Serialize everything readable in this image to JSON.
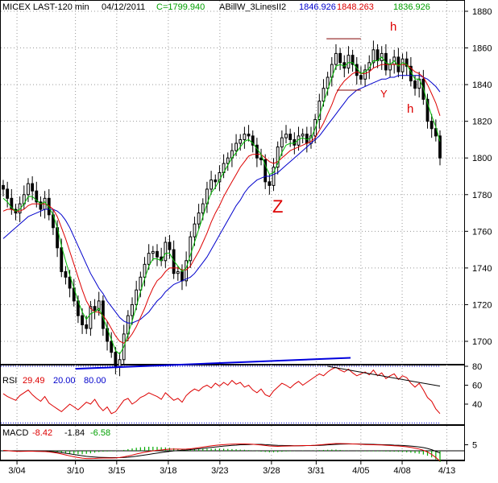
{
  "header": {
    "symbol": "MICEX LAST-120 min",
    "date": "04/12/2011",
    "close": "C=1799.940",
    "indicator": "ABillW_3LinesII2",
    "ma1": "1846.926",
    "ma2": "1848.263",
    "ma3": "1836.926"
  },
  "rsi_header": {
    "label": "RSI",
    "v1": "29.49",
    "v2": "20.00",
    "v3": "80.00"
  },
  "macd_header": {
    "label": "MACD",
    "v1": "-8.42",
    "v2": "-1.84",
    "v3": "-6.58"
  },
  "annotations": {
    "h_top": "h",
    "h_right": "h",
    "y": "Y",
    "z": "Z"
  },
  "colors": {
    "background": "#ffffff",
    "candles": "#000000",
    "ma_green": "#00bb00",
    "ma_red": "#dd0000",
    "ma_blue": "#0000cc",
    "trendline": "#0000dd",
    "pattern": "#800000",
    "rsi": "#dd0000",
    "macd_green": "#00aa00"
  },
  "chart_data": [
    {
      "type": "line",
      "title": "MICEX LAST-120 min",
      "x_tick_labels": [
        "3/04",
        "3/10",
        "3/15",
        "3/18",
        "3/23",
        "3/28",
        "3/31",
        "4/05",
        "4/08",
        "4/13"
      ],
      "y_tick_labels": [
        "1700",
        "1720",
        "1740",
        "1760",
        "1780",
        "1800",
        "1820",
        "1840",
        "1860",
        "1880"
      ],
      "ylim": [
        1683,
        1891
      ],
      "grid": true,
      "price": [
        1783,
        1778,
        1772,
        1770,
        1775,
        1780,
        1786,
        1782,
        1776,
        1772,
        1778,
        1769,
        1762,
        1751,
        1738,
        1735,
        1729,
        1722,
        1714,
        1709,
        1707,
        1719,
        1717,
        1722,
        1707,
        1700,
        1694,
        1686,
        1690,
        1704,
        1714,
        1720,
        1728,
        1735,
        1742,
        1748,
        1749,
        1746,
        1744,
        1754,
        1750,
        1737,
        1738,
        1733,
        1744,
        1757,
        1764,
        1770,
        1775,
        1783,
        1788,
        1787,
        1792,
        1797,
        1800,
        1804,
        1808,
        1810,
        1813,
        1812,
        1807,
        1800,
        1799,
        1787,
        1785,
        1795,
        1806,
        1811,
        1813,
        1810,
        1807,
        1812,
        1813,
        1808,
        1812,
        1821,
        1831,
        1838,
        1844,
        1851,
        1857,
        1852,
        1849,
        1856,
        1851,
        1845,
        1843,
        1848,
        1852,
        1859,
        1853,
        1857,
        1848,
        1851,
        1855,
        1847,
        1854,
        1850,
        1842,
        1838,
        1843,
        1832,
        1820,
        1816,
        1812,
        1800
      ],
      "price_fit_note": "",
      "ma_fast": [
        1778,
        1776,
        1773,
        1771,
        1772,
        1775,
        1779,
        1779,
        1777,
        1775,
        1776,
        1773,
        1769,
        1762,
        1752,
        1744,
        1736,
        1729,
        1722,
        1716,
        1712,
        1715,
        1716,
        1718,
        1713,
        1707,
        1701,
        1695,
        1693,
        1697,
        1704,
        1711,
        1719,
        1727,
        1734,
        1741,
        1745,
        1745,
        1744,
        1748,
        1748,
        1744,
        1741,
        1738,
        1740,
        1747,
        1754,
        1761,
        1768,
        1775,
        1781,
        1784,
        1788,
        1792,
        1796,
        1800,
        1803,
        1806,
        1809,
        1810,
        1808,
        1805,
        1802,
        1796,
        1791,
        1792,
        1797,
        1803,
        1807,
        1808,
        1808,
        1810,
        1811,
        1810,
        1811,
        1816,
        1823,
        1830,
        1837,
        1844,
        1850,
        1851,
        1850,
        1852,
        1852,
        1849,
        1846,
        1847,
        1849,
        1853,
        1853,
        1855,
        1852,
        1851,
        1853,
        1850,
        1852,
        1851,
        1847,
        1843,
        1843,
        1838,
        1830,
        1823,
        1817,
        1809
      ],
      "ma_mid": [
        1771,
        1772,
        1772,
        1771,
        1771,
        1772,
        1774,
        1775,
        1775,
        1775,
        1775,
        1774,
        1772,
        1768,
        1762,
        1756,
        1749,
        1742,
        1735,
        1728,
        1722,
        1718,
        1716,
        1716,
        1714,
        1711,
        1707,
        1703,
        1700,
        1699,
        1701,
        1704,
        1708,
        1713,
        1718,
        1724,
        1729,
        1733,
        1735,
        1738,
        1740,
        1740,
        1740,
        1739,
        1739,
        1741,
        1745,
        1749,
        1754,
        1759,
        1765,
        1770,
        1774,
        1779,
        1783,
        1787,
        1791,
        1795,
        1798,
        1801,
        1802,
        1802,
        1802,
        1800,
        1798,
        1797,
        1798,
        1800,
        1802,
        1804,
        1805,
        1806,
        1807,
        1808,
        1809,
        1811,
        1815,
        1819,
        1824,
        1829,
        1835,
        1839,
        1842,
        1844,
        1846,
        1847,
        1846,
        1846,
        1847,
        1849,
        1850,
        1851,
        1851,
        1851,
        1851,
        1851,
        1851,
        1851,
        1849,
        1847,
        1846,
        1844,
        1840,
        1835,
        1830,
        1823
      ],
      "ma_slow": [
        1756,
        1758,
        1760,
        1762,
        1764,
        1766,
        1768,
        1769,
        1770,
        1771,
        1772,
        1772,
        1772,
        1771,
        1769,
        1766,
        1762,
        1757,
        1752,
        1747,
        1742,
        1737,
        1733,
        1729,
        1726,
        1722,
        1719,
        1716,
        1713,
        1711,
        1710,
        1710,
        1711,
        1712,
        1714,
        1716,
        1719,
        1722,
        1724,
        1727,
        1729,
        1731,
        1732,
        1733,
        1734,
        1735,
        1737,
        1740,
        1743,
        1746,
        1750,
        1754,
        1758,
        1762,
        1766,
        1770,
        1774,
        1777,
        1781,
        1784,
        1786,
        1788,
        1789,
        1790,
        1790,
        1791,
        1792,
        1794,
        1796,
        1798,
        1800,
        1802,
        1804,
        1806,
        1808,
        1810,
        1812,
        1815,
        1818,
        1821,
        1824,
        1827,
        1830,
        1833,
        1835,
        1837,
        1838,
        1839,
        1840,
        1841,
        1842,
        1843,
        1843,
        1844,
        1844,
        1845,
        1845,
        1845,
        1845,
        1845,
        1845,
        1844,
        1843,
        1841,
        1839,
        1836
      ],
      "trendlines": [
        {
          "from": [
            "3/10",
            1685
          ],
          "to": [
            "4/07",
            1691
          ],
          "color": "#0000dd"
        },
        {
          "from": [
            "4/01",
            1865
          ],
          "to": [
            "4/11",
            1865
          ],
          "color": "#800000"
        },
        {
          "from": [
            "4/02",
            1837
          ],
          "to": [
            "4/11",
            1837
          ],
          "color": "#800000"
        }
      ]
    },
    {
      "type": "line",
      "title": "RSI",
      "y_tick_labels": [
        "40",
        "60",
        "80"
      ],
      "ylim": [
        16,
        88
      ],
      "levels": [
        20,
        80
      ],
      "values": [
        51,
        48,
        46,
        44,
        49,
        52,
        55,
        50,
        46,
        43,
        48,
        41,
        38,
        35,
        32,
        36,
        40,
        37,
        34,
        38,
        42,
        40,
        45,
        38,
        33,
        37,
        30,
        32,
        38,
        44,
        46,
        40,
        43,
        47,
        49,
        52,
        50,
        48,
        45,
        52,
        48,
        44,
        46,
        42,
        49,
        53,
        56,
        54,
        58,
        60,
        57,
        62,
        59,
        63,
        60,
        65,
        61,
        63,
        58,
        60,
        55,
        52,
        56,
        50,
        48,
        54,
        58,
        62,
        60,
        57,
        61,
        64,
        60,
        63,
        66,
        69,
        72,
        70,
        74,
        77,
        79,
        76,
        74,
        77,
        73,
        70,
        72,
        74,
        71,
        76,
        70,
        73,
        67,
        70,
        72,
        66,
        70,
        68,
        62,
        58,
        62,
        55,
        47,
        43,
        35,
        30
      ],
      "trendline": {
        "from_index": 78,
        "from_value": 80,
        "to_index": 105,
        "to_value": 59
      }
    },
    {
      "type": "area",
      "title": "MACD",
      "y_tick_labels": [
        "5"
      ],
      "ylim": [
        -8,
        10
      ],
      "macd": [
        0.3,
        0.1,
        -0.2,
        -0.4,
        -0.5,
        -0.4,
        -0.3,
        -0.3,
        -0.4,
        -0.5,
        -0.6,
        -0.9,
        -1.3,
        -1.9,
        -2.6,
        -3.4,
        -4.2,
        -4.9,
        -5.6,
        -6.1,
        -6.4,
        -6.4,
        -6.3,
        -6.1,
        -6.0,
        -6.0,
        -6.0,
        -5.9,
        -5.6,
        -5.0,
        -4.3,
        -3.5,
        -2.7,
        -1.9,
        -1.2,
        -0.6,
        0.0,
        0.4,
        0.7,
        1.1,
        1.3,
        1.4,
        1.4,
        1.3,
        1.4,
        1.7,
        2.1,
        2.6,
        3.1,
        3.6,
        4.1,
        4.5,
        4.8,
        5.1,
        5.3,
        5.5,
        5.6,
        5.7,
        5.7,
        5.6,
        5.4,
        5.1,
        4.8,
        4.4,
        4.0,
        3.8,
        3.7,
        3.8,
        3.9,
        4.0,
        4.1,
        4.2,
        4.3,
        4.3,
        4.4,
        4.6,
        4.9,
        5.2,
        5.5,
        5.8,
        6.0,
        6.0,
        5.9,
        5.8,
        5.7,
        5.6,
        5.4,
        5.2,
        5.1,
        5.0,
        4.9,
        4.8,
        4.6,
        4.4,
        4.2,
        4.0,
        3.7,
        3.3,
        2.8,
        2.2,
        1.5,
        0.5,
        -1.0,
        -3.0,
        -5.5,
        -8.4
      ],
      "signal": [
        0.2,
        0.1,
        0.0,
        -0.1,
        -0.2,
        -0.3,
        -0.3,
        -0.3,
        -0.4,
        -0.4,
        -0.5,
        -0.6,
        -0.8,
        -1.1,
        -1.5,
        -2.0,
        -2.5,
        -3.1,
        -3.6,
        -4.1,
        -4.6,
        -4.9,
        -5.2,
        -5.4,
        -5.5,
        -5.6,
        -5.7,
        -5.7,
        -5.7,
        -5.5,
        -5.3,
        -4.9,
        -4.5,
        -4.0,
        -3.5,
        -3.0,
        -2.4,
        -1.9,
        -1.4,
        -0.9,
        -0.5,
        -0.1,
        0.2,
        0.5,
        0.7,
        1.0,
        1.3,
        1.7,
        2.0,
        2.4,
        2.8,
        3.2,
        3.5,
        3.9,
        4.2,
        4.5,
        4.7,
        5.0,
        5.1,
        5.2,
        5.3,
        5.3,
        5.3,
        5.1,
        4.9,
        4.7,
        4.5,
        4.4,
        4.3,
        4.3,
        4.2,
        4.2,
        4.2,
        4.3,
        4.3,
        4.4,
        4.5,
        4.7,
        4.9,
        5.1,
        5.3,
        5.5,
        5.6,
        5.7,
        5.7,
        5.7,
        5.6,
        5.5,
        5.4,
        5.3,
        5.2,
        5.1,
        5.0,
        4.9,
        4.7,
        4.6,
        4.4,
        4.2,
        3.9,
        3.6,
        3.2,
        2.7,
        1.9,
        0.9,
        -0.4,
        -1.8
      ]
    }
  ]
}
